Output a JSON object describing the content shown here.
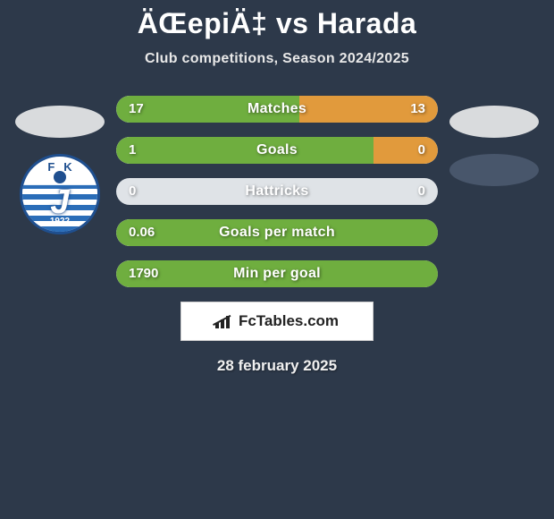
{
  "title": "ÄŒepiÄ‡ vs Harada",
  "subtitle": "Club competitions, Season 2024/2025",
  "date": "28 february 2025",
  "brand": "FcTables.com",
  "colors": {
    "left_bar": "#6fae3f",
    "right_bar": "#e19a3c",
    "neutral_bar": "#dfe3e7",
    "background": "#2d394a",
    "oval_light": "#d9dbdd",
    "oval_dark": "#48566b"
  },
  "badge": {
    "initials": "FK",
    "letter": "J",
    "year": "1922"
  },
  "stats": [
    {
      "label": "Matches",
      "left_val": "17",
      "right_val": "13",
      "left_pct": 57,
      "right_pct": 43
    },
    {
      "label": "Goals",
      "left_val": "1",
      "right_val": "0",
      "left_pct": 80,
      "right_pct": 20
    },
    {
      "label": "Hattricks",
      "left_val": "0",
      "right_val": "0",
      "left_pct": 0,
      "right_pct": 0
    },
    {
      "label": "Goals per match",
      "left_val": "0.06",
      "right_val": "",
      "left_pct": 100,
      "right_pct": 0
    },
    {
      "label": "Min per goal",
      "left_val": "1790",
      "right_val": "",
      "left_pct": 100,
      "right_pct": 0
    }
  ]
}
